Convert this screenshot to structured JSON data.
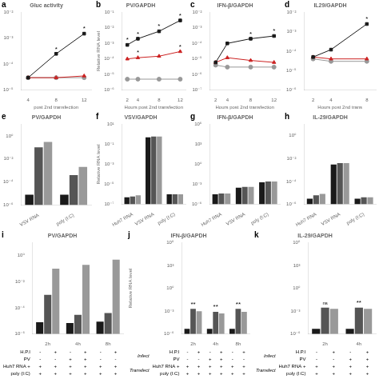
{
  "chart_data": [
    {
      "type": "line",
      "title": "Gluc activity",
      "xlabel": "post 2nd transfection",
      "log": "y",
      "grid": false,
      "x": [
        4,
        8,
        12
      ],
      "xlim": [
        3,
        13
      ],
      "xticks": [
        4,
        8,
        12
      ],
      "series": [
        {
          "color": "#1a1a1a",
          "marker": "square",
          "values": [
            3e-05,
            0.00025,
            0.0015
          ]
        },
        {
          "color": "#cc2222",
          "marker": "triangle",
          "values": [
            3e-05,
            3e-05,
            3.5e-05
          ]
        },
        {
          "color": "#999999",
          "marker": "circle",
          "values": [
            3e-05,
            3e-05,
            3e-05
          ]
        }
      ],
      "ylim": [
        1e-05,
        0.01
      ],
      "yticks": [
        {
          "value": 1e-05,
          "label": "10⁻⁵"
        },
        {
          "value": 0.0001,
          "label": "10⁻⁴"
        },
        {
          "value": 0.001,
          "label": "10⁻³"
        },
        {
          "value": 0.01,
          "label": "10⁻²"
        }
      ],
      "annotations": [
        {
          "text": "a"
        },
        {
          "text": "*",
          "x": 8,
          "y": 0.00025
        },
        {
          "text": "*",
          "x": 12,
          "y": 0.0015
        }
      ]
    },
    {
      "type": "line",
      "title": "PV/GAPDH",
      "xlabel": "Hours post 2nd transfection",
      "ylabel": "Relative RNA level",
      "log": "y",
      "grid": false,
      "x": [
        2,
        4,
        8,
        12
      ],
      "xlim": [
        1,
        13
      ],
      "xticks": [
        2,
        4,
        8,
        12
      ],
      "series": [
        {
          "color": "#1a1a1a",
          "marker": "square",
          "values": [
            0.0008,
            0.002,
            0.006,
            0.03
          ]
        },
        {
          "color": "#cc2222",
          "marker": "triangle",
          "values": [
            0.0001,
            0.00012,
            0.00015,
            0.0003
          ]
        },
        {
          "color": "#999999",
          "marker": "circle",
          "values": [
            5e-06,
            5e-06,
            5e-06,
            5e-06
          ]
        }
      ],
      "ylim": [
        1e-06,
        0.1
      ],
      "yticks": [
        {
          "value": 1e-06,
          "label": "10⁻⁶"
        },
        {
          "value": 1e-05,
          "label": "10⁻⁵"
        },
        {
          "value": 0.0001,
          "label": "10⁻⁴"
        },
        {
          "value": 0.001,
          "label": "10⁻³"
        },
        {
          "value": 0.01,
          "label": "10⁻²"
        },
        {
          "value": 0.1,
          "label": "10⁻¹"
        }
      ],
      "annotations": [
        {
          "text": "b"
        },
        {
          "text": "*",
          "x": 2,
          "y": 0.0008
        },
        {
          "text": "*",
          "x": 4,
          "y": 0.002
        },
        {
          "text": "*",
          "x": 8,
          "y": 0.006
        },
        {
          "text": "*",
          "x": 12,
          "y": 0.03
        },
        {
          "text": "*",
          "x": 4,
          "y": 0.00012
        },
        {
          "text": "*",
          "x": 12,
          "y": 0.0003
        }
      ]
    },
    {
      "type": "line",
      "title": "IFN-β/GAPDH",
      "xlabel": "Hours post 2nd transfection",
      "log": "y",
      "grid": false,
      "x": [
        2,
        4,
        8,
        12
      ],
      "xlim": [
        1,
        13
      ],
      "xticks": [
        2,
        4,
        8,
        12
      ],
      "series": [
        {
          "color": "#1a1a1a",
          "marker": "square",
          "values": [
            6e-06,
            0.0001,
            0.0002,
            0.0003
          ]
        },
        {
          "color": "#cc2222",
          "marker": "triangle",
          "values": [
            6e-06,
            1.2e-05,
            8e-06,
            6e-06
          ]
        },
        {
          "color": "#999999",
          "marker": "circle",
          "values": [
            4e-06,
            3e-06,
            3e-06,
            3e-06
          ]
        }
      ],
      "ylim": [
        1e-07,
        0.01
      ],
      "yticks": [
        {
          "value": 1e-07,
          "label": "10⁻⁷"
        },
        {
          "value": 1e-06,
          "label": "10⁻⁶"
        },
        {
          "value": 1e-05,
          "label": "10⁻⁵"
        },
        {
          "value": 0.0001,
          "label": "10⁻⁴"
        },
        {
          "value": 0.001,
          "label": "10⁻³"
        },
        {
          "value": 0.01,
          "label": "10⁻²"
        }
      ],
      "annotations": [
        {
          "text": "c"
        },
        {
          "text": "*",
          "x": 8,
          "y": 0.0002
        },
        {
          "text": "*",
          "x": 12,
          "y": 0.0003
        }
      ]
    },
    {
      "type": "line",
      "title": "IL29/GAPDH",
      "xlabel": "Hours post 2nd trans",
      "log": "y",
      "grid": false,
      "x": [
        2,
        4,
        8
      ],
      "xlim": [
        1,
        9
      ],
      "xticks": [
        2,
        4,
        8
      ],
      "series": [
        {
          "color": "#1a1a1a",
          "marker": "square",
          "values": [
            5e-05,
            0.00012,
            0.0025
          ]
        },
        {
          "color": "#cc2222",
          "marker": "triangle",
          "values": [
            5e-05,
            4e-05,
            4e-05
          ]
        },
        {
          "color": "#999999",
          "marker": "circle",
          "values": [
            4e-05,
            3e-05,
            3e-05
          ]
        }
      ],
      "ylim": [
        1e-06,
        0.01
      ],
      "yticks": [
        {
          "value": 1e-06,
          "label": "10⁻⁶"
        },
        {
          "value": 1e-05,
          "label": "10⁻⁵"
        },
        {
          "value": 0.0001,
          "label": "10⁻⁴"
        },
        {
          "value": 0.001,
          "label": "10⁻³"
        },
        {
          "value": 0.01,
          "label": "10⁻²"
        }
      ],
      "annotations": [
        {
          "text": "d"
        },
        {
          "text": "*",
          "x": 8,
          "y": 0.0025
        }
      ]
    },
    {
      "type": "bar",
      "title": "PV/GAPDH",
      "log": "y",
      "grid": false,
      "categories": [
        "VSV RNA",
        "poly (I:C)"
      ],
      "series": [
        {
          "color": "#1a1a1a",
          "values": [
            8e-06,
            8e-06
          ]
        },
        {
          "color": "#555555",
          "values": [
            0.1,
            0.0004
          ]
        },
        {
          "color": "#999999",
          "values": [
            0.3,
            0.002
          ]
        }
      ],
      "ylim": [
        1e-06,
        10.0
      ],
      "yticks": [
        {
          "value": 1e-06,
          "label": "10⁻⁶"
        },
        {
          "value": 0.0001,
          "label": "10⁻⁴"
        },
        {
          "value": 0.01,
          "label": "10⁻²"
        },
        {
          "value": 1,
          "label": "10⁰"
        }
      ],
      "annotations": [
        {
          "text": "e"
        }
      ]
    },
    {
      "type": "bar",
      "title": "VSV/GAPDH",
      "ylabel": "Relative RNA level",
      "log": "y",
      "grid": false,
      "categories": [
        "Huh7 RNA",
        "VSV RNA",
        "poly (I:C)"
      ],
      "series": [
        {
          "color": "#1a1a1a",
          "values": [
            5e-07,
            0.5,
            1e-06
          ]
        },
        {
          "color": "#555555",
          "values": [
            6e-07,
            0.6,
            1e-06
          ]
        },
        {
          "color": "#999999",
          "values": [
            8e-07,
            0.6,
            1e-06
          ]
        }
      ],
      "ylim": [
        1e-07,
        10.0
      ],
      "yticks": [
        {
          "value": 1e-07,
          "label": "10⁻⁷"
        },
        {
          "value": 1e-05,
          "label": "10⁻⁵"
        },
        {
          "value": 0.001,
          "label": "10⁻³"
        },
        {
          "value": 0.1,
          "label": "10⁻¹"
        },
        {
          "value": 10.0,
          "label": "10¹"
        }
      ],
      "annotations": [
        {
          "text": "f"
        }
      ]
    },
    {
      "type": "bar",
      "title": "IFN-β/GAPDH",
      "log": "y",
      "grid": false,
      "categories": [
        "Huh7 RNA",
        "VSV RNA",
        "poly (I:C)"
      ],
      "series": [
        {
          "color": "#1a1a1a",
          "values": [
            3e-05,
            0.0003,
            0.002
          ]
        },
        {
          "color": "#555555",
          "values": [
            4e-05,
            0.0004,
            0.0025
          ]
        },
        {
          "color": "#999999",
          "values": [
            4e-05,
            0.0004,
            0.0025
          ]
        }
      ],
      "ylim": [
        1e-06,
        1000000.0
      ],
      "yticks": [
        {
          "value": 1e-06,
          "label": "10⁻⁶"
        },
        {
          "value": 0.001,
          "label": "10⁻³"
        },
        {
          "value": 1,
          "label": "10⁰"
        },
        {
          "value": 1000.0,
          "label": "10³"
        },
        {
          "value": 1000000.0,
          "label": "10⁶"
        }
      ],
      "annotations": [
        {
          "text": "g"
        }
      ]
    },
    {
      "type": "bar",
      "title": "IL-29/GAPDH",
      "log": "y",
      "grid": false,
      "categories": [
        "Huh7 RNA",
        "VSV RNA",
        "poly (I:C)"
      ],
      "series": [
        {
          "color": "#1a1a1a",
          "values": [
            3e-06,
            0.003,
            3e-06
          ]
        },
        {
          "color": "#555555",
          "values": [
            6e-06,
            0.004,
            4e-06
          ]
        },
        {
          "color": "#999999",
          "values": [
            8e-06,
            0.004,
            4e-06
          ]
        }
      ],
      "ylim": [
        1e-06,
        10.0
      ],
      "yticks": [
        {
          "value": 1e-06,
          "label": "10⁻⁶"
        },
        {
          "value": 0.0001,
          "label": "10⁻⁴"
        },
        {
          "value": 0.01,
          "label": "10⁻²"
        },
        {
          "value": 1,
          "label": "10⁰"
        }
      ],
      "annotations": [
        {
          "text": "h"
        }
      ]
    },
    {
      "type": "bar",
      "title": "PV/GAPDH",
      "log": "y",
      "grid": false,
      "categories": [
        "2h",
        "4h",
        "8h"
      ],
      "series": [
        {
          "color": "#1a1a1a",
          "values": [
            8e-06,
            7e-06,
            9e-06
          ]
        },
        {
          "color": "#555555",
          "values": [
            0.001,
            3e-05,
            4e-05
          ]
        },
        {
          "color": "#999999",
          "values": [
            0.1,
            0.2,
            0.5
          ]
        }
      ],
      "ylim": [
        1e-06,
        10.0
      ],
      "yticks": [
        {
          "value": 1e-06,
          "label": "10⁻⁶"
        },
        {
          "value": 0.0001,
          "label": "10⁻⁴"
        },
        {
          "value": 0.01,
          "label": "10⁻²"
        },
        {
          "value": 1,
          "label": "10⁰"
        }
      ],
      "annotations": [
        {
          "text": "i"
        }
      ],
      "condition_table": [
        {
          "label": "H.P.I",
          "signs": [
            "-",
            "+",
            "-",
            "+",
            "-",
            "+"
          ]
        },
        {
          "label": "PV",
          "signs": [
            "-",
            "-",
            "+",
            "+",
            "-",
            "-"
          ]
        },
        {
          "label": "Huh7 RNA +",
          "signs": [
            "+",
            "+",
            "+",
            "+",
            "+",
            "+"
          ]
        },
        {
          "label": "poly (I:C)",
          "signs": [
            "+",
            "+",
            "+",
            "+",
            "+",
            "+"
          ]
        }
      ]
    },
    {
      "type": "bar",
      "title": "IFN-β/GAPDH",
      "ylabel": "Relative RNA level",
      "log": "y",
      "grid": false,
      "categories": [
        "2h",
        "4h",
        "8h"
      ],
      "series": [
        {
          "color": "#1a1a1a",
          "values": [
            5e-06,
            5e-06,
            5e-06
          ]
        },
        {
          "color": "#555555",
          "values": [
            0.002,
            0.0008,
            0.002
          ]
        },
        {
          "color": "#999999",
          "values": [
            0.001,
            0.0005,
            0.0008
          ]
        }
      ],
      "ylim": [
        1e-06,
        1000000.0
      ],
      "yticks": [
        {
          "value": 1e-06,
          "label": "10⁻⁶"
        },
        {
          "value": 0.001,
          "label": "10⁻³"
        },
        {
          "value": 1,
          "label": "10⁰"
        },
        {
          "value": 1000.0,
          "label": "10³"
        },
        {
          "value": 1000000.0,
          "label": "10⁶"
        }
      ],
      "annotations": [
        {
          "text": "j"
        },
        {
          "text": "**",
          "x": "2h",
          "y": 0.002
        },
        {
          "text": "**",
          "x": "4h",
          "y": 0.0008
        },
        {
          "text": "**",
          "x": "8h",
          "y": 0.002
        }
      ],
      "condition_table": [
        {
          "label": "H.P.I",
          "signs": [
            "-",
            "+",
            "-",
            "+",
            "-",
            "+"
          ],
          "group": "Infect"
        },
        {
          "label": "PV",
          "signs": [
            "-",
            "-",
            "+",
            "+",
            "-",
            "-"
          ],
          "group": "Infect"
        },
        {
          "label": "Huh7 RNA +",
          "signs": [
            "+",
            "+",
            "+",
            "+",
            "+",
            "+"
          ],
          "group": "Transfect"
        },
        {
          "label": "poly (I:C)",
          "signs": [
            "+",
            "+",
            "+",
            "+",
            "+",
            "+"
          ],
          "group": "Transfect"
        }
      ]
    },
    {
      "type": "bar",
      "title": "IL-29/GAPDH",
      "log": "y",
      "grid": false,
      "categories": [
        "2h",
        "4h"
      ],
      "series": [
        {
          "color": "#1a1a1a",
          "values": [
            5e-06,
            5e-06
          ]
        },
        {
          "color": "#555555",
          "values": [
            0.003,
            0.003
          ]
        },
        {
          "color": "#999999",
          "values": [
            0.002,
            0.002
          ]
        }
      ],
      "ylim": [
        1e-06,
        1000000.0
      ],
      "yticks": [
        {
          "value": 1e-06,
          "label": "10⁻⁶"
        },
        {
          "value": 0.001,
          "label": "10⁻³"
        },
        {
          "value": 1,
          "label": "10⁰"
        },
        {
          "value": 1000.0,
          "label": "10³"
        },
        {
          "value": 1000000.0,
          "label": "10⁶"
        }
      ],
      "annotations": [
        {
          "text": "k"
        },
        {
          "text": "ns",
          "x": "2h",
          "y": 0.003
        },
        {
          "text": "**",
          "x": "4h",
          "y": 0.003
        }
      ],
      "condition_table": [
        {
          "label": "H.P.I",
          "signs": [
            "-",
            "+",
            "-",
            "+"
          ],
          "group": "Infect"
        },
        {
          "label": "PV",
          "signs": [
            "-",
            "-",
            "+",
            "+"
          ],
          "group": "Infect"
        },
        {
          "label": "Huh7 RNA +",
          "signs": [
            "+",
            "+",
            "+",
            "+"
          ],
          "group": "Transfect"
        },
        {
          "label": "poly (I:C)",
          "signs": [
            "+",
            "+",
            "+",
            "+"
          ],
          "group": "Transfect"
        }
      ]
    }
  ]
}
